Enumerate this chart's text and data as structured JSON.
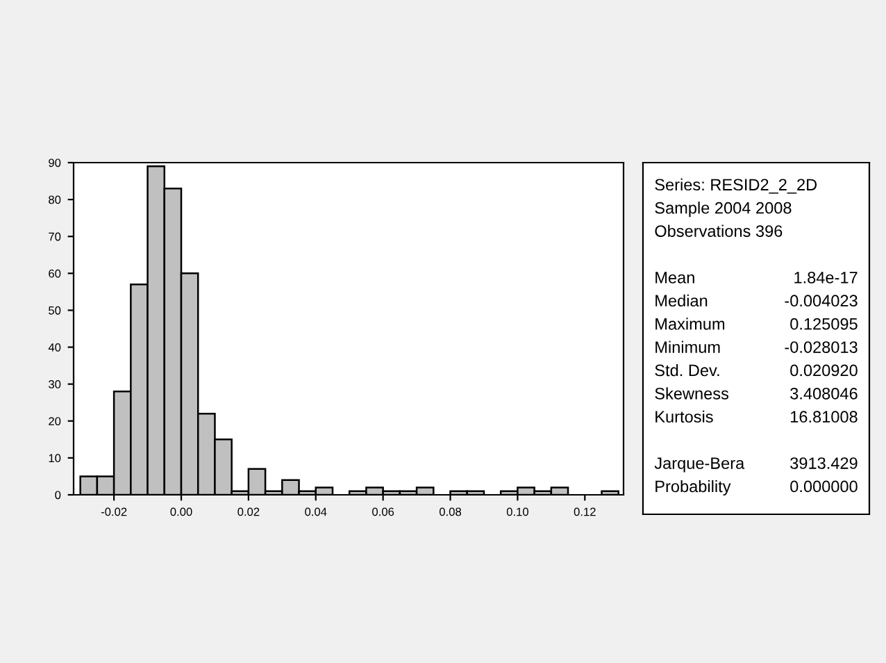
{
  "chart_data": {
    "type": "histogram",
    "bins": [
      -0.03,
      -0.025,
      -0.02,
      -0.015,
      -0.01,
      -0.005,
      0.0,
      0.005,
      0.01,
      0.015,
      0.02,
      0.025,
      0.03,
      0.035,
      0.04,
      0.045,
      0.05,
      0.055,
      0.06,
      0.065,
      0.07,
      0.075,
      0.08,
      0.085,
      0.09,
      0.095,
      0.1,
      0.105,
      0.11,
      0.115,
      0.12,
      0.125,
      0.13
    ],
    "values": [
      5,
      5,
      28,
      57,
      89,
      83,
      60,
      22,
      15,
      1,
      7,
      1,
      4,
      1,
      2,
      0,
      1,
      2,
      1,
      1,
      2,
      0,
      1,
      1,
      0,
      1,
      2,
      1,
      2,
      0,
      0,
      1
    ],
    "color": "#c0c0c0",
    "xlim": [
      -0.032,
      0.1315
    ],
    "ylim": [
      0,
      90
    ],
    "xticks": [
      {
        "value": -0.02,
        "label": "-0.02"
      },
      {
        "value": 0.0,
        "label": "0.00"
      },
      {
        "value": 0.02,
        "label": "0.02"
      },
      {
        "value": 0.04,
        "label": "0.04"
      },
      {
        "value": 0.06,
        "label": "0.06"
      },
      {
        "value": 0.08,
        "label": "0.08"
      },
      {
        "value": 0.1,
        "label": "0.10"
      },
      {
        "value": 0.12,
        "label": "0.12"
      }
    ],
    "yticks": [
      0,
      10,
      20,
      30,
      40,
      50,
      60,
      70,
      80,
      90
    ],
    "grid": false,
    "annotations": [
      "Series: RESID2_2_2D",
      "Sample 2004 2008",
      "Observations 396",
      "Mean",
      "1.84e-17",
      "Median",
      "-0.004023",
      "Maximum",
      "0.125095",
      "Minimum",
      "-0.028013",
      "Std. Dev.",
      "0.020920",
      "Skewness",
      "3.408046",
      "Kurtosis",
      "16.81008",
      "Jarque-Bera",
      "3913.429",
      "Probability",
      "0.000000"
    ]
  }
}
